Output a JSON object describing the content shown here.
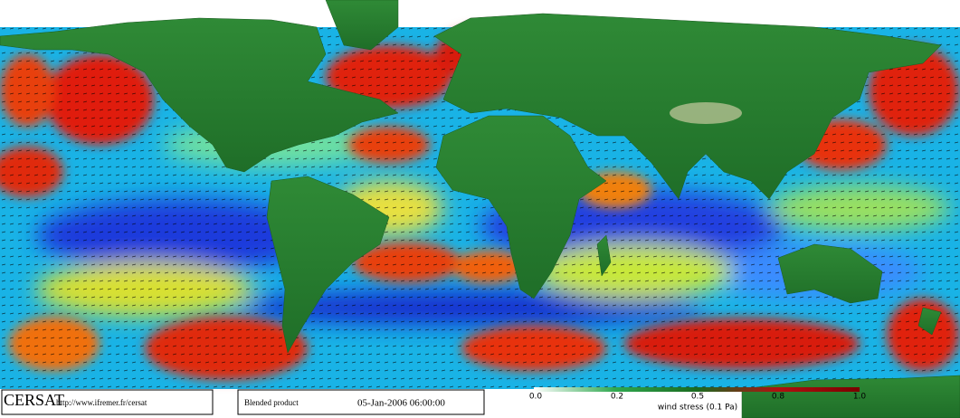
{
  "footer": {
    "logo": "CERSAT",
    "url": "http://www.ifremer.fr/cersat",
    "product": "Blended product",
    "datetime": "05-Jan-2006 06:00:00"
  },
  "colorbar": {
    "ticks": [
      "0.0",
      "0.2",
      "0.5",
      "0.8",
      "1.0"
    ],
    "label": "wind stress (0.1 Pa)"
  }
}
